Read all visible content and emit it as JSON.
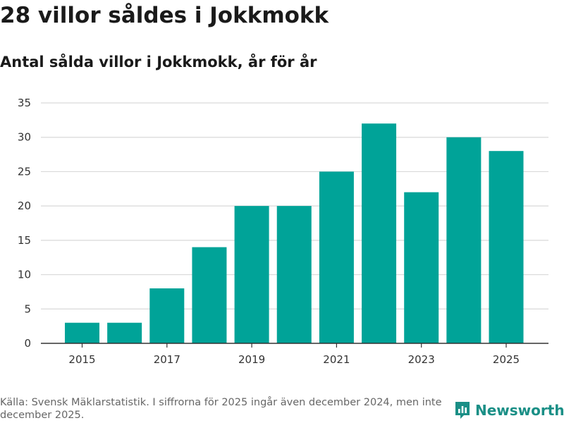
{
  "title": "28 villor såldes i Jokkmokk",
  "subtitle": "Antal sålda villor i Jokkmokk, år för år",
  "chart_data": {
    "type": "bar",
    "title": "Antal sålda villor i Jokkmokk, år för år",
    "xlabel": "",
    "ylabel": "",
    "categories": [
      "2015",
      "2016",
      "2017",
      "2018",
      "2019",
      "2020",
      "2021",
      "2022",
      "2023",
      "2024",
      "2025"
    ],
    "values": [
      3,
      3,
      8,
      14,
      20,
      20,
      25,
      32,
      22,
      30,
      28
    ],
    "x_tick_labels": [
      "2015",
      "2017",
      "2019",
      "2021",
      "2023",
      "2025"
    ],
    "y_ticks": [
      0,
      5,
      10,
      15,
      20,
      25,
      30,
      35
    ],
    "ylim": [
      0,
      35
    ],
    "grid": true,
    "bar_color": "#00a398"
  },
  "footer": {
    "source": "Källa: Svensk Mäklarstatistik. I siffrorna för 2025 ingår även december 2024, men inte december 2025."
  },
  "brand": {
    "name": "Newsworthy",
    "icon": "newsworthy-logo-icon",
    "color": "#1a8f86"
  }
}
